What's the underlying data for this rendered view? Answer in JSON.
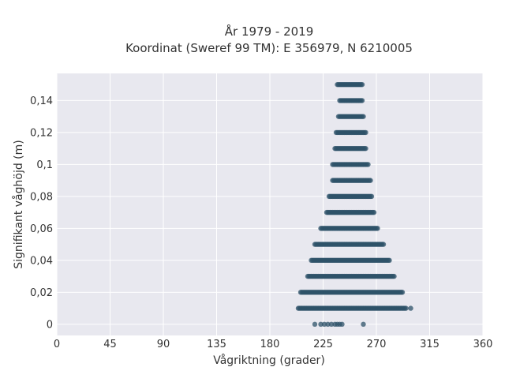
{
  "chart_data": {
    "type": "scatter",
    "title_lines": [
      "År 1979 - 2019",
      "Koordinat (Sweref 99 TM): E 356979, N 6210005"
    ],
    "xlabel": "Vågriktning (grader)",
    "ylabel": "Signifikant våghöjd (m)",
    "xlim": [
      0,
      360
    ],
    "ylim": [
      -0.007,
      0.157
    ],
    "xticks": [
      0,
      45,
      90,
      135,
      180,
      225,
      270,
      315,
      360
    ],
    "xtick_labels": [
      "0",
      "45",
      "90",
      "135",
      "180",
      "225",
      "270",
      "315",
      "360"
    ],
    "yticks": [
      0,
      0.02,
      0.04,
      0.06,
      0.08,
      0.1,
      0.12,
      0.14
    ],
    "ytick_labels": [
      "0",
      "0,02",
      "0,04",
      "0,06",
      "0,08",
      "0,1",
      "0,12",
      "0,14"
    ],
    "grid": true,
    "marker_color": "#2e5168",
    "plot_background": "#e8e8ef",
    "point_bands": [
      {
        "y": 0,
        "x": [
          218,
          223,
          226,
          229,
          232,
          235,
          237,
          239,
          241,
          259
        ]
      },
      {
        "y": 0.01,
        "x_min": 204,
        "x_max": 295,
        "outliers": [
          299
        ]
      },
      {
        "y": 0.02,
        "x_min": 206,
        "x_max": 292
      },
      {
        "y": 0.03,
        "x_min": 212,
        "x_max": 285
      },
      {
        "y": 0.04,
        "x_min": 215,
        "x_max": 281
      },
      {
        "y": 0.05,
        "x_min": 218,
        "x_max": 276
      },
      {
        "y": 0.06,
        "x_min": 223,
        "x_max": 271
      },
      {
        "y": 0.07,
        "x_min": 228,
        "x_max": 268
      },
      {
        "y": 0.08,
        "x_min": 230,
        "x_max": 266
      },
      {
        "y": 0.09,
        "x_min": 233,
        "x_max": 265
      },
      {
        "y": 0.1,
        "x_min": 233,
        "x_max": 263
      },
      {
        "y": 0.11,
        "x_min": 235,
        "x_max": 261
      },
      {
        "y": 0.12,
        "x_min": 236,
        "x_max": 261
      },
      {
        "y": 0.13,
        "x_min": 238,
        "x_max": 259
      },
      {
        "y": 0.14,
        "x_min": 239,
        "x_max": 258
      },
      {
        "y": 0.15,
        "x_min": 237,
        "x_max": 258
      }
    ]
  }
}
